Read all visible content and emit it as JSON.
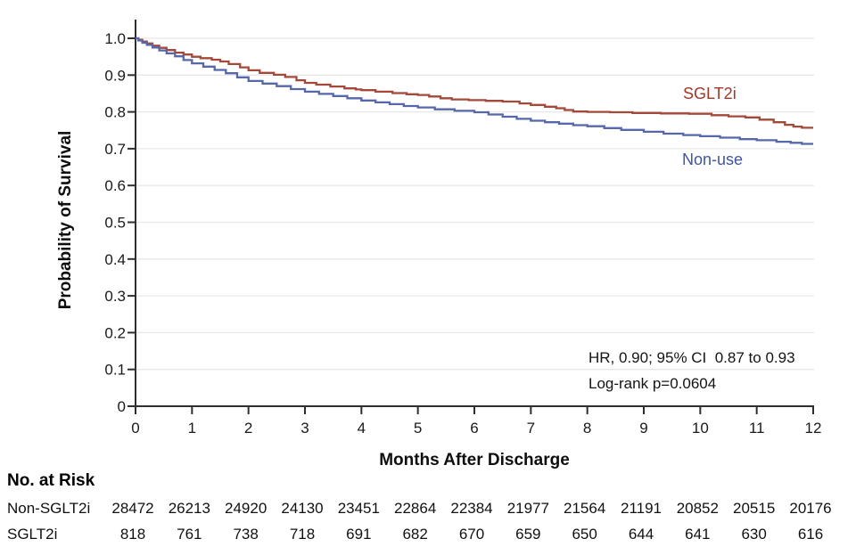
{
  "chart_data": {
    "type": "line",
    "subtype": "kaplan_meier_step_survival",
    "title": "",
    "xlabel": "Months After Discharge",
    "ylabel": "Probability of Survival",
    "xlim": [
      0,
      12
    ],
    "ylim": [
      0,
      1.0
    ],
    "x_ticks": [
      0,
      1,
      2,
      3,
      4,
      5,
      6,
      7,
      8,
      9,
      10,
      11,
      12
    ],
    "y_ticks": [
      0,
      0.1,
      0.2,
      0.3,
      0.4,
      0.5,
      0.6,
      0.7,
      0.8,
      0.9,
      1.0
    ],
    "y_tick_labels": [
      "0",
      "0.1",
      "0.2",
      "0.3",
      "0.4",
      "0.5",
      "0.6",
      "0.7",
      "0.8",
      "0.9",
      "1.0"
    ],
    "grid": "horizontal",
    "legend_position": "inline-right",
    "annotations": [
      "HR, 0.90; 95% CI  0.87 to 0.93",
      "Log-rank p=0.0604"
    ],
    "series": [
      {
        "name": "SGLT2i",
        "line_color": "#A4483A",
        "label_color": "#A23728",
        "monthly_values": [
          1.0,
          0.95,
          0.913,
          0.879,
          0.859,
          0.846,
          0.831,
          0.819,
          0.8,
          0.796,
          0.794,
          0.779,
          0.757
        ],
        "samples": [
          [
            0,
            1.0
          ],
          [
            0.05,
            0.996
          ],
          [
            0.12,
            0.991
          ],
          [
            0.2,
            0.986
          ],
          [
            0.3,
            0.98
          ],
          [
            0.42,
            0.974
          ],
          [
            0.55,
            0.968
          ],
          [
            0.7,
            0.961
          ],
          [
            0.85,
            0.956
          ],
          [
            1.0,
            0.95
          ],
          [
            1.15,
            0.946
          ],
          [
            1.35,
            0.942
          ],
          [
            1.5,
            0.937
          ],
          [
            1.65,
            0.93
          ],
          [
            1.85,
            0.921
          ],
          [
            2.0,
            0.913
          ],
          [
            2.2,
            0.906
          ],
          [
            2.45,
            0.901
          ],
          [
            2.65,
            0.895
          ],
          [
            2.85,
            0.886
          ],
          [
            3.0,
            0.879
          ],
          [
            3.2,
            0.874
          ],
          [
            3.45,
            0.869
          ],
          [
            3.7,
            0.864
          ],
          [
            3.9,
            0.861
          ],
          [
            4.0,
            0.859
          ],
          [
            4.25,
            0.855
          ],
          [
            4.55,
            0.851
          ],
          [
            4.8,
            0.848
          ],
          [
            5.0,
            0.846
          ],
          [
            5.2,
            0.842
          ],
          [
            5.4,
            0.837
          ],
          [
            5.6,
            0.834
          ],
          [
            5.9,
            0.832
          ],
          [
            6.2,
            0.83
          ],
          [
            6.5,
            0.828
          ],
          [
            6.8,
            0.823
          ],
          [
            7.0,
            0.819
          ],
          [
            7.25,
            0.814
          ],
          [
            7.45,
            0.81
          ],
          [
            7.6,
            0.805
          ],
          [
            7.75,
            0.801
          ],
          [
            8.0,
            0.8
          ],
          [
            8.4,
            0.799
          ],
          [
            8.8,
            0.797
          ],
          [
            9.3,
            0.796
          ],
          [
            9.8,
            0.795
          ],
          [
            10.2,
            0.791
          ],
          [
            10.5,
            0.788
          ],
          [
            10.8,
            0.785
          ],
          [
            11.05,
            0.779
          ],
          [
            11.3,
            0.772
          ],
          [
            11.5,
            0.765
          ],
          [
            11.65,
            0.76
          ],
          [
            11.8,
            0.757
          ],
          [
            12,
            0.757
          ]
        ]
      },
      {
        "name": "Non-use",
        "line_color": "#5667AB",
        "label_color": "#4155A3",
        "monthly_values": [
          1.0,
          0.932,
          0.884,
          0.855,
          0.831,
          0.812,
          0.799,
          0.776,
          0.761,
          0.746,
          0.734,
          0.723,
          0.713
        ],
        "samples": [
          [
            0,
            1.0
          ],
          [
            0.05,
            0.994
          ],
          [
            0.12,
            0.988
          ],
          [
            0.2,
            0.982
          ],
          [
            0.3,
            0.975
          ],
          [
            0.42,
            0.967
          ],
          [
            0.55,
            0.959
          ],
          [
            0.7,
            0.951
          ],
          [
            0.85,
            0.941
          ],
          [
            1.0,
            0.932
          ],
          [
            1.2,
            0.923
          ],
          [
            1.4,
            0.914
          ],
          [
            1.6,
            0.905
          ],
          [
            1.8,
            0.894
          ],
          [
            2.0,
            0.884
          ],
          [
            2.25,
            0.877
          ],
          [
            2.5,
            0.87
          ],
          [
            2.75,
            0.862
          ],
          [
            3.0,
            0.855
          ],
          [
            3.25,
            0.849
          ],
          [
            3.5,
            0.843
          ],
          [
            3.75,
            0.837
          ],
          [
            4.0,
            0.831
          ],
          [
            4.25,
            0.826
          ],
          [
            4.5,
            0.821
          ],
          [
            4.75,
            0.816
          ],
          [
            5.0,
            0.812
          ],
          [
            5.3,
            0.807
          ],
          [
            5.65,
            0.803
          ],
          [
            6.0,
            0.799
          ],
          [
            6.25,
            0.793
          ],
          [
            6.5,
            0.787
          ],
          [
            6.75,
            0.781
          ],
          [
            7.0,
            0.776
          ],
          [
            7.25,
            0.772
          ],
          [
            7.5,
            0.768
          ],
          [
            7.75,
            0.764
          ],
          [
            8.0,
            0.761
          ],
          [
            8.3,
            0.756
          ],
          [
            8.6,
            0.751
          ],
          [
            9.0,
            0.746
          ],
          [
            9.35,
            0.741
          ],
          [
            9.7,
            0.737
          ],
          [
            10.0,
            0.734
          ],
          [
            10.35,
            0.73
          ],
          [
            10.7,
            0.726
          ],
          [
            11.0,
            0.723
          ],
          [
            11.35,
            0.719
          ],
          [
            11.6,
            0.716
          ],
          [
            11.8,
            0.713
          ],
          [
            12,
            0.713
          ]
        ]
      }
    ]
  },
  "risk_table": {
    "title": "No. at Risk",
    "months": [
      0,
      1,
      2,
      3,
      4,
      5,
      6,
      7,
      8,
      9,
      10,
      11,
      12
    ],
    "rows": [
      {
        "label": "Non-SGLT2i",
        "values": [
          28472,
          26213,
          24920,
          24130,
          23451,
          22864,
          22384,
          21977,
          21564,
          21191,
          20852,
          20515,
          20176
        ]
      },
      {
        "label": "SGLT2i",
        "values": [
          818,
          761,
          738,
          718,
          691,
          682,
          670,
          659,
          650,
          644,
          641,
          630,
          616
        ]
      }
    ]
  },
  "colors": {
    "axis": "#2E2E2E",
    "grid": "#E8E8E8",
    "tick_text": "#1A1A1A"
  }
}
